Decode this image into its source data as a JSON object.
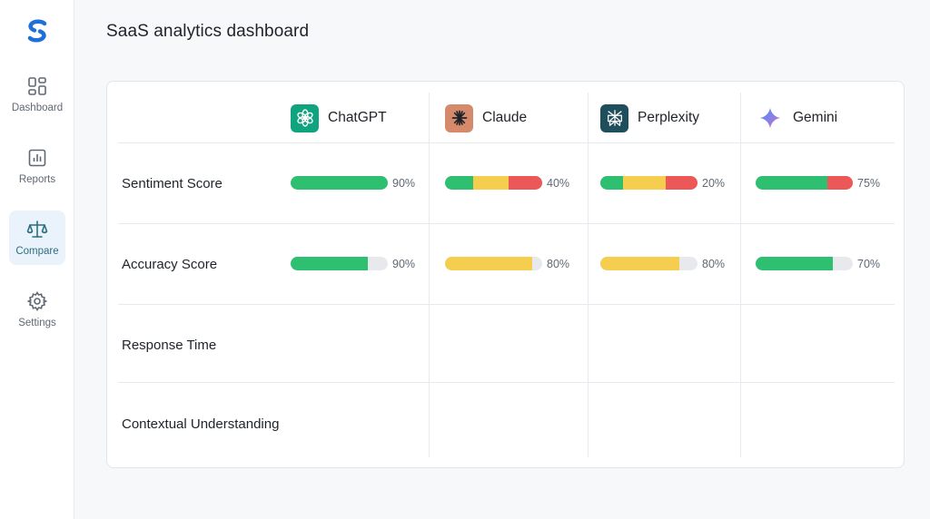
{
  "nav": {
    "items": [
      {
        "label": "Dashboard",
        "icon": "grid-icon",
        "active": false
      },
      {
        "label": "Reports",
        "icon": "bar-chart-icon",
        "active": false
      },
      {
        "label": "Compare",
        "icon": "scale-icon",
        "active": true
      },
      {
        "label": "Settings",
        "icon": "gear-icon",
        "active": false
      }
    ]
  },
  "page": {
    "title": "SaaS analytics dashboard"
  },
  "colors": {
    "green": "#2fbf71",
    "yellow": "#f5cd4f",
    "red": "#ec5757",
    "track": "#e7e9ec",
    "chatgpt_bg": "#10a37f",
    "claude_bg": "#d68a6c",
    "perplexity_bg": "#1f4f5c"
  },
  "models": [
    {
      "name": "ChatGPT",
      "icon": "chatgpt-logo-icon"
    },
    {
      "name": "Claude",
      "icon": "claude-logo-icon"
    },
    {
      "name": "Perplexity",
      "icon": "perplexity-logo-icon"
    },
    {
      "name": "Gemini",
      "icon": "gemini-logo-icon"
    }
  ],
  "metrics": [
    {
      "label": "Sentiment Score"
    },
    {
      "label": "Accuracy Score"
    },
    {
      "label": "Response Time"
    },
    {
      "label": "Contextual Understanding"
    }
  ],
  "scores": {
    "sentiment": [
      {
        "pct": "90%",
        "segments": [
          {
            "color": "green",
            "value": 1.0
          }
        ]
      },
      {
        "pct": "40%",
        "segments": [
          {
            "color": "green",
            "value": 0.29
          },
          {
            "color": "yellow",
            "value": 0.36
          },
          {
            "color": "red",
            "value": 0.35
          }
        ]
      },
      {
        "pct": "20%",
        "segments": [
          {
            "color": "green",
            "value": 0.23
          },
          {
            "color": "yellow",
            "value": 0.44
          },
          {
            "color": "red",
            "value": 0.33
          }
        ]
      },
      {
        "pct": "75%",
        "segments": [
          {
            "color": "green",
            "value": 0.74
          },
          {
            "color": "red",
            "value": 0.26
          }
        ]
      }
    ],
    "accuracy": [
      {
        "pct": "90%",
        "segments": [
          {
            "color": "green",
            "value": 0.79
          }
        ]
      },
      {
        "pct": "80%",
        "segments": [
          {
            "color": "yellow",
            "value": 0.9
          }
        ]
      },
      {
        "pct": "80%",
        "segments": [
          {
            "color": "yellow",
            "value": 0.81
          }
        ]
      },
      {
        "pct": "70%",
        "segments": [
          {
            "color": "green",
            "value": 0.79
          }
        ]
      }
    ]
  }
}
